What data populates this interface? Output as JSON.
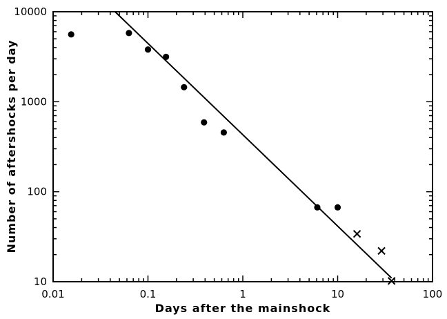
{
  "chart_data": {
    "type": "scatter",
    "xlabel": "Days after the mainshock",
    "ylabel": "Number of aftershocks per day",
    "xscale": "log",
    "yscale": "log",
    "xlim": [
      0.01,
      100
    ],
    "ylim": [
      10,
      10000
    ],
    "grid": false,
    "x_ticks": [
      {
        "value": 0.01,
        "label": "0.01"
      },
      {
        "value": 0.1,
        "label": "0.1"
      },
      {
        "value": 1,
        "label": "1"
      },
      {
        "value": 10,
        "label": "10"
      },
      {
        "value": 100,
        "label": "100"
      }
    ],
    "y_ticks": [
      {
        "value": 10,
        "label": "10"
      },
      {
        "value": 100,
        "label": "100"
      },
      {
        "value": 1000,
        "label": "1000"
      },
      {
        "value": 10000,
        "label": "10000"
      }
    ],
    "series": [
      {
        "marker": "dot",
        "points": [
          {
            "x": 0.0155,
            "y": 5600
          },
          {
            "x": 0.063,
            "y": 5800
          },
          {
            "x": 0.1,
            "y": 3800
          },
          {
            "x": 0.155,
            "y": 3150
          },
          {
            "x": 0.24,
            "y": 1450
          },
          {
            "x": 0.39,
            "y": 590
          },
          {
            "x": 0.63,
            "y": 455
          },
          {
            "x": 6.1,
            "y": 67
          },
          {
            "x": 10,
            "y": 67
          }
        ]
      },
      {
        "marker": "cross",
        "points": [
          {
            "x": 16,
            "y": 34
          },
          {
            "x": 29,
            "y": 22
          },
          {
            "x": 37,
            "y": 10.2
          }
        ]
      }
    ],
    "fit_line": {
      "from": {
        "x": 0.045,
        "y": 10000
      },
      "to": {
        "x": 37,
        "y": 11
      }
    }
  }
}
